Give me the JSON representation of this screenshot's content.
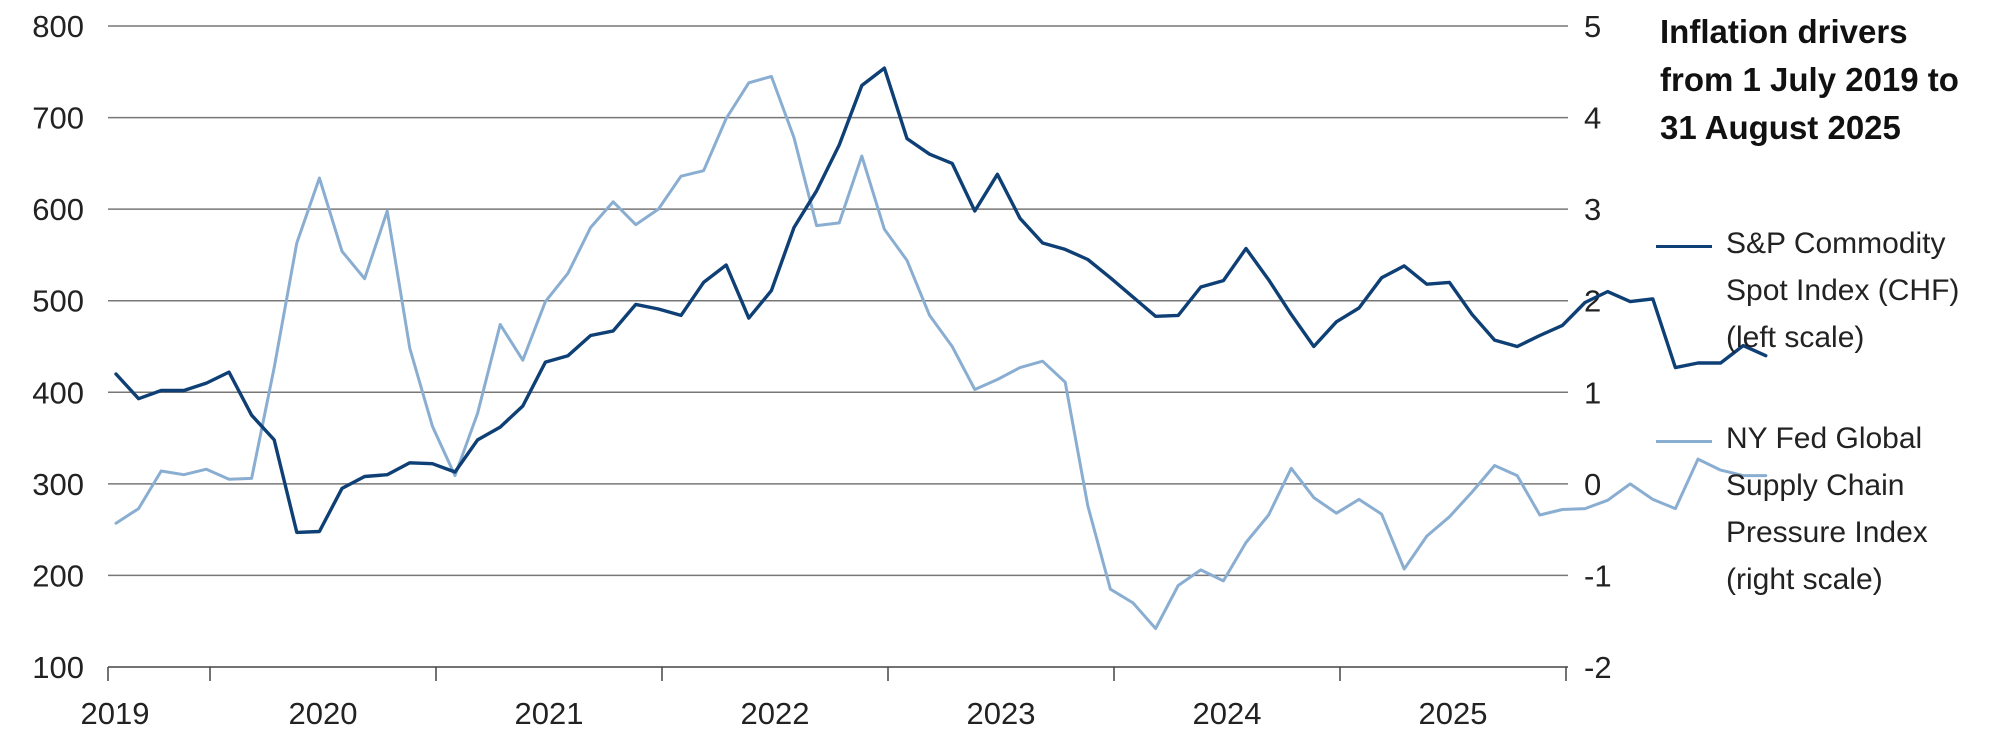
{
  "chart_data": {
    "type": "line",
    "title": "Inflation drivers from 1 July 2019 to 31 August 2025",
    "x_start": "2019-07",
    "x_labels": [
      "2019",
      "2020",
      "2021",
      "2022",
      "2023",
      "2024",
      "2025"
    ],
    "left_axis": {
      "ylim": [
        100,
        800
      ],
      "ticks": [
        "100",
        "200",
        "300",
        "400",
        "500",
        "600",
        "700",
        "800"
      ]
    },
    "right_axis": {
      "ylim": [
        -2,
        5
      ],
      "ticks": [
        "-2",
        "-1",
        "0",
        "1",
        "2",
        "3",
        "4",
        "5"
      ]
    },
    "grid": true,
    "legend_position": "right",
    "series": [
      {
        "name": "S&P Commodity Spot Index (CHF) (left scale)",
        "legend_lines": [
          "S&P Commodity",
          "Spot Index (CHF)",
          "(left scale)"
        ],
        "axis": "left",
        "color": "#0e3f75",
        "values": [
          420,
          393,
          402,
          402,
          410,
          422,
          375,
          348,
          247,
          248,
          295,
          308,
          310,
          323,
          322,
          313,
          348,
          362,
          385,
          433,
          440,
          462,
          467,
          496,
          491,
          484,
          520,
          539,
          481,
          511,
          580,
          620,
          670,
          735,
          754,
          677,
          660,
          650,
          598,
          638,
          590,
          563,
          556,
          545,
          525,
          504,
          483,
          484,
          515,
          522,
          557,
          523,
          485,
          450,
          477,
          492,
          525,
          538,
          518,
          520,
          485,
          457,
          450,
          462,
          473,
          498,
          510,
          499,
          502,
          427,
          432,
          432,
          451,
          440
        ]
      },
      {
        "name": "NY Fed Global Supply Chain Pressure Index (right scale)",
        "legend_lines": [
          "NY Fed Global",
          "Supply Chain",
          "Pressure Index",
          "(right scale)"
        ],
        "axis": "right",
        "color": "#8aaed1",
        "values": [
          -0.43,
          -0.27,
          0.14,
          0.1,
          0.16,
          0.05,
          0.06,
          1.27,
          2.63,
          3.34,
          2.54,
          2.24,
          2.98,
          1.48,
          0.63,
          0.09,
          0.77,
          1.74,
          1.35,
          1.99,
          2.3,
          2.8,
          3.08,
          2.83,
          3.0,
          3.36,
          3.42,
          3.99,
          4.38,
          4.45,
          3.78,
          2.82,
          2.85,
          3.58,
          2.78,
          2.44,
          1.84,
          1.5,
          1.03,
          1.14,
          1.27,
          1.34,
          1.11,
          -0.24,
          -1.15,
          -1.3,
          -1.58,
          -1.11,
          -0.94,
          -1.06,
          -0.64,
          -0.34,
          0.17,
          -0.15,
          -0.32,
          -0.17,
          -0.33,
          -0.93,
          -0.57,
          -0.36,
          -0.09,
          0.2,
          0.09,
          -0.34,
          -0.28,
          -0.27,
          -0.18,
          0.0,
          -0.17,
          -0.27,
          0.27,
          0.15,
          0.09,
          0.09
        ]
      }
    ]
  }
}
